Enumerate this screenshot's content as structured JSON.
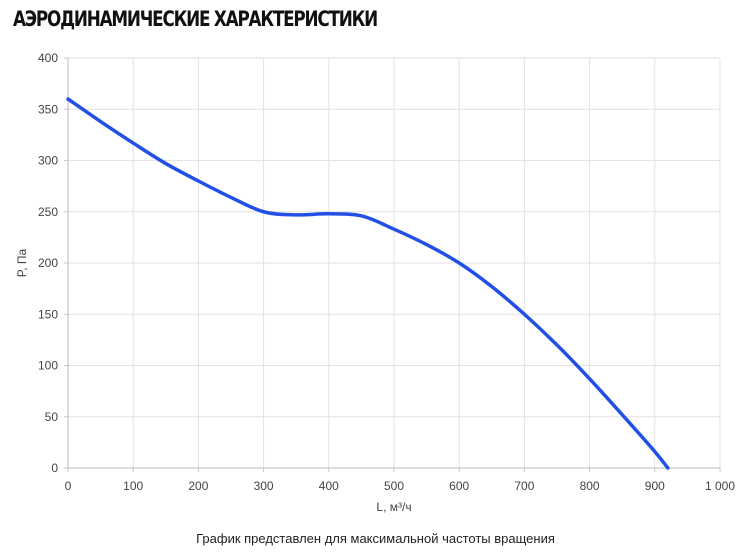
{
  "page": {
    "title": "АЭРОДИНАМИЧЕСКИЕ ХАРАКТЕРИСТИКИ",
    "caption": "График представлен для максимальной частоты вращения"
  },
  "chart_data": {
    "type": "line",
    "title": "",
    "xlabel": "L, м³/ч",
    "ylabel": "P, Па",
    "xlim": [
      0,
      1000
    ],
    "ylim": [
      0,
      400
    ],
    "x_ticks": [
      0,
      100,
      200,
      300,
      400,
      500,
      600,
      700,
      800,
      900,
      1000
    ],
    "x_tick_labels": [
      "0",
      "100",
      "200",
      "300",
      "400",
      "500",
      "600",
      "700",
      "800",
      "900",
      "1 000"
    ],
    "y_ticks": [
      0,
      50,
      100,
      150,
      200,
      250,
      300,
      350,
      400
    ],
    "y_tick_labels": [
      "0",
      "50",
      "100",
      "150",
      "200",
      "250",
      "300",
      "350",
      "400"
    ],
    "grid": true,
    "legend": "none",
    "series": [
      {
        "color": "#2250e6",
        "x": [
          0,
          50,
          100,
          150,
          200,
          250,
          300,
          350,
          400,
          450,
          500,
          550,
          600,
          650,
          700,
          750,
          800,
          850,
          900,
          920
        ],
        "y": [
          360,
          338,
          317,
          297,
          280,
          264,
          250,
          247,
          248,
          246,
          233,
          218,
          200,
          177,
          150,
          120,
          87,
          52,
          16,
          0
        ]
      }
    ]
  }
}
